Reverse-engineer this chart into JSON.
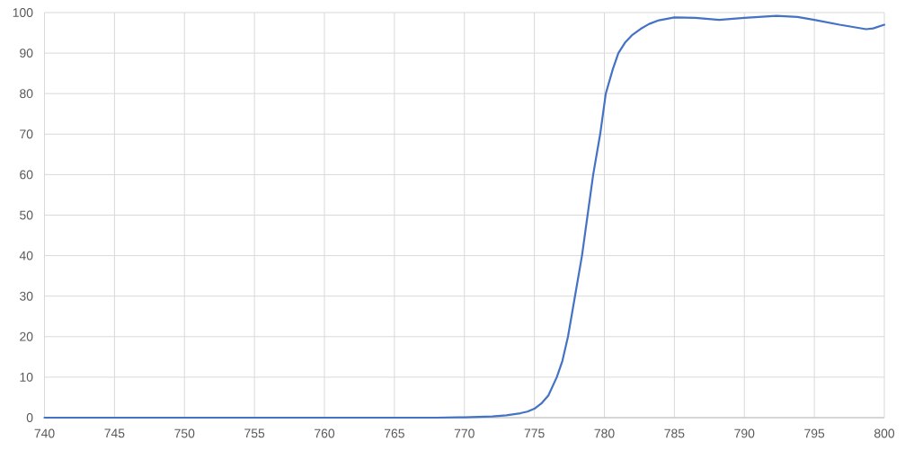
{
  "chart_data": {
    "type": "line",
    "x": [
      740,
      745,
      750,
      755,
      760,
      765,
      768,
      770,
      771,
      772,
      773,
      774,
      774.5,
      775,
      775.5,
      776,
      776.6,
      777,
      777.4,
      777.9,
      778.4,
      778.8,
      779.2,
      779.7,
      780.1,
      780.6,
      781,
      781.5,
      782,
      782.6,
      783.2,
      783.9,
      785,
      786.5,
      788.2,
      790,
      792.3,
      793.8,
      795,
      796.8,
      798.7,
      799.2,
      800
    ],
    "series": [
      {
        "color": "#4472c4",
        "values": [
          0,
          0,
          0,
          0,
          0,
          0,
          0,
          0.1,
          0.2,
          0.3,
          0.6,
          1.1,
          1.5,
          2.2,
          3.5,
          5.5,
          10,
          14,
          20,
          30,
          40,
          50,
          60,
          70,
          80,
          86,
          90,
          92.7,
          94.5,
          96,
          97.2,
          98.1,
          98.8,
          98.7,
          98.2,
          98.7,
          99.2,
          98.9,
          98.2,
          97,
          95.9,
          96.1,
          97
        ]
      }
    ],
    "xlim": [
      740,
      800
    ],
    "ylim": [
      0,
      100
    ],
    "xticks": [
      740,
      745,
      750,
      755,
      760,
      765,
      770,
      775,
      780,
      785,
      790,
      795,
      800
    ],
    "yticks": [
      0,
      10,
      20,
      30,
      40,
      50,
      60,
      70,
      80,
      90,
      100
    ],
    "grid": true
  }
}
